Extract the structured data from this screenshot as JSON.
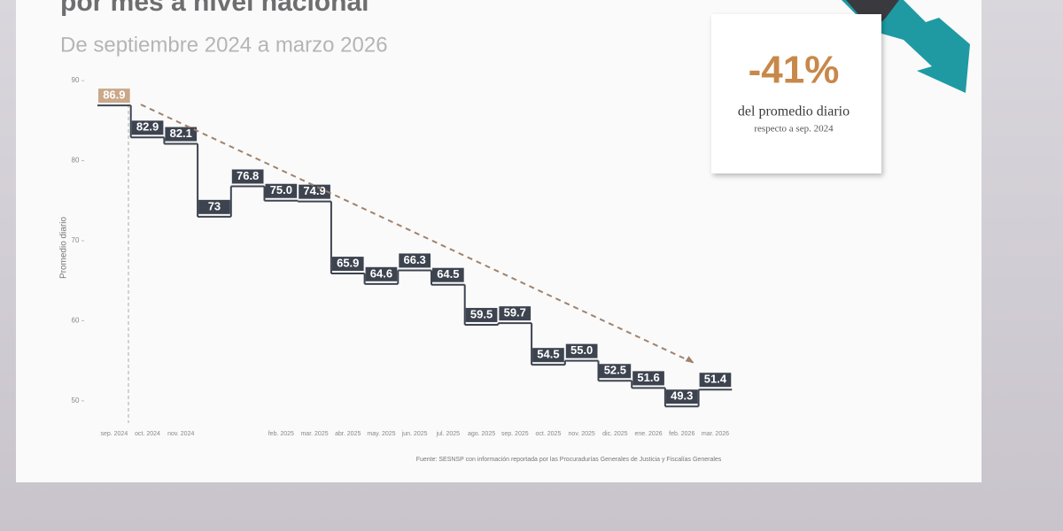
{
  "chart_data": {
    "type": "step",
    "title": "por mes a nivel nacional",
    "subtitle": "De septiembre 2024 a marzo 2026",
    "y_label": "Promedio diario",
    "source": "Fuente: SESNSP con información reportada por las Procuradurías Generales de Justicia y Fiscalías Generales",
    "annotations": [
      "-41%",
      "del promedio diario",
      "respecto a sep. 2024"
    ],
    "categories": [
      "sep. 2024",
      "oct. 2024",
      "nov. 2024",
      null,
      null,
      "feb. 2025",
      "mar. 2025",
      "abr. 2025",
      "may. 2025",
      "jun. 2025",
      "jul. 2025",
      "ago. 2025",
      "sep. 2025",
      "oct. 2025",
      "nov. 2025",
      "dic. 2025",
      "ene. 2026",
      "feb. 2026",
      "mar. 2026"
    ],
    "values": [
      86.9,
      82.9,
      82.1,
      73,
      76.8,
      75.0,
      74.9,
      65.9,
      64.6,
      66.3,
      64.5,
      59.5,
      59.7,
      54.5,
      55.0,
      52.5,
      51.6,
      49.3,
      51.4
    ],
    "value_labels": [
      "86.9",
      "82.9",
      "82.1",
      "73",
      "76.8",
      "75.0",
      "74.9",
      "65.9",
      "64.6",
      "66.3",
      "64.5",
      "59.5",
      "59.7",
      "54.5",
      "55.0",
      "52.5",
      "51.6",
      "49.3",
      "51.4"
    ],
    "color": "#3d4450",
    "highlight_color": "#c9a88a",
    "trend_color": "#a0826d",
    "ylim": [
      47,
      92
    ],
    "yticks": [
      50,
      60,
      70,
      80,
      90
    ],
    "grid": false
  }
}
